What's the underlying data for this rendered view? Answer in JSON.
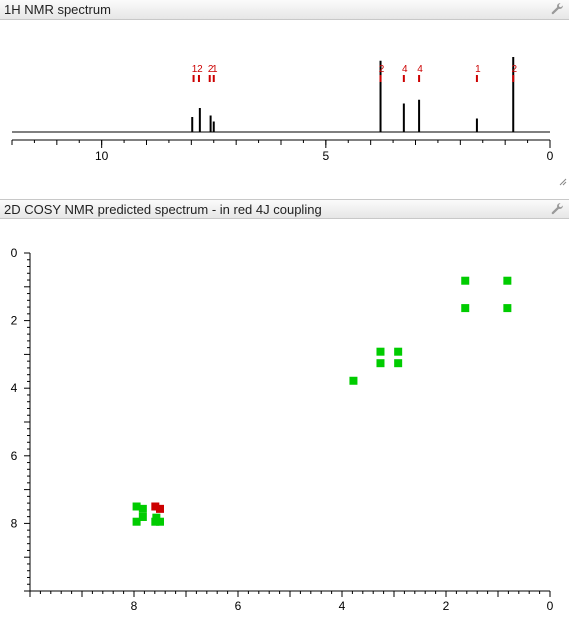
{
  "panel1": {
    "title": "1H NMR spectrum",
    "icon": "wrench-icon"
  },
  "panel2": {
    "title": "2D COSY NMR predicted spectrum - in red 4J coupling",
    "icon": "wrench-icon"
  },
  "colors": {
    "spectrum": "#000000",
    "multiplicity": "#cc0000",
    "cosy": "#00cc00",
    "cosy4j": "#cc0000"
  },
  "chart_data": [
    {
      "type": "line",
      "title": "1H NMR spectrum",
      "xlim": [
        12,
        0
      ],
      "x_ticks": [
        "10",
        "5",
        "0"
      ],
      "x_tick_values": [
        10,
        5,
        0
      ],
      "peaks": [
        {
          "x": 7.98,
          "height": 0.2,
          "label": ""
        },
        {
          "x": 7.81,
          "height": 0.32,
          "label": ""
        },
        {
          "x": 7.57,
          "height": 0.22,
          "label": ""
        },
        {
          "x": 7.5,
          "height": 0.14,
          "label": ""
        },
        {
          "x": 3.78,
          "height": 0.95,
          "label": "2"
        },
        {
          "x": 3.26,
          "height": 0.38,
          "label": "4"
        },
        {
          "x": 2.92,
          "height": 0.43,
          "label": "4"
        },
        {
          "x": 1.63,
          "height": 0.18,
          "label": "1"
        },
        {
          "x": 0.82,
          "height": 1.0,
          "label": "2"
        }
      ],
      "multiplicity_labels": [
        {
          "x": 7.95,
          "text": "1"
        },
        {
          "x": 7.83,
          "text": "2"
        },
        {
          "x": 7.59,
          "text": "2"
        },
        {
          "x": 7.5,
          "text": "1"
        }
      ]
    },
    {
      "type": "scatter",
      "title": "2D COSY NMR predicted spectrum - in red 4J coupling",
      "xlim": [
        10,
        0
      ],
      "ylim": [
        0,
        10
      ],
      "x_ticks": [
        "8",
        "6",
        "4",
        "2",
        "0"
      ],
      "x_tick_values": [
        8,
        6,
        4,
        2,
        0
      ],
      "y_ticks": [
        "0",
        "2",
        "4",
        "6",
        "8"
      ],
      "y_tick_values": [
        0,
        2,
        4,
        6,
        8
      ],
      "series": [
        {
          "points": [
            [
              1.63,
              0.82
            ],
            [
              0.82,
              0.82
            ],
            [
              1.63,
              1.63
            ],
            [
              0.82,
              1.63
            ],
            [
              3.26,
              2.92
            ],
            [
              2.92,
              2.92
            ],
            [
              3.26,
              3.26
            ],
            [
              2.92,
              3.26
            ],
            [
              3.78,
              3.78
            ],
            [
              7.95,
              7.5
            ],
            [
              7.83,
              7.57
            ],
            [
              7.95,
              7.95
            ],
            [
              7.83,
              7.81
            ],
            [
              7.57,
              7.83
            ],
            [
              7.59,
              7.95
            ],
            [
              7.5,
              7.95
            ]
          ]
        },
        {
          "points": [
            [
              7.59,
              7.5
            ],
            [
              7.5,
              7.57
            ]
          ]
        }
      ]
    }
  ]
}
